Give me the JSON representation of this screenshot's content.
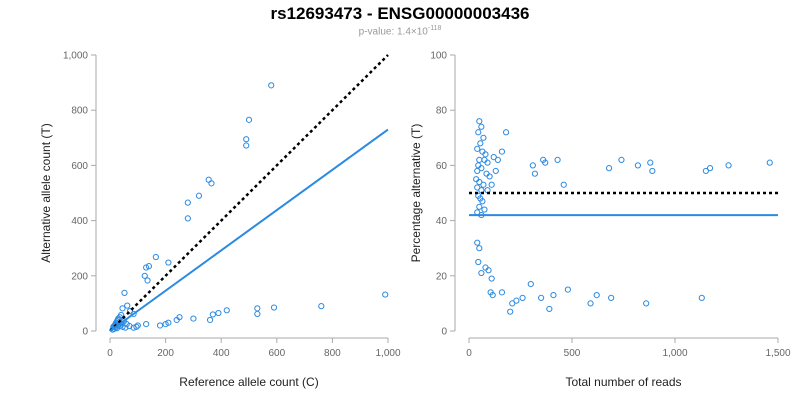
{
  "title": "rs12693473 - ENSG00000003436",
  "subtitle": {
    "prefix": "p-value: 1.4×10",
    "exponent": "-118"
  },
  "chart_data": [
    {
      "type": "scatter",
      "name": "allele-count-plot",
      "xlabel": "Reference allele count (C)",
      "ylabel": "Alternative allele count (T)",
      "xlim": [
        0,
        1000
      ],
      "ylim": [
        0,
        1000
      ],
      "xticks": [
        0,
        200,
        400,
        600,
        800,
        1000
      ],
      "xtick_labels": [
        "0",
        "200",
        "400",
        "600",
        "800",
        "1,000"
      ],
      "yticks": [
        0,
        200,
        400,
        600,
        800,
        1000
      ],
      "ytick_labels": [
        "0",
        "200",
        "400",
        "600",
        "800",
        "1,000"
      ],
      "reference_line": {
        "style": "dotted",
        "color": "#000000",
        "from": [
          0,
          0
        ],
        "to": [
          1000,
          1000
        ]
      },
      "fit_line": {
        "style": "solid",
        "color": "#2b8ae2",
        "from": [
          0,
          0
        ],
        "to": [
          1000,
          730
        ]
      },
      "marker_color": "#2b8ae2",
      "points": [
        [
          580,
          890
        ],
        [
          500,
          765
        ],
        [
          490,
          695
        ],
        [
          490,
          672
        ],
        [
          355,
          548
        ],
        [
          365,
          535
        ],
        [
          280,
          465
        ],
        [
          320,
          490
        ],
        [
          280,
          408
        ],
        [
          210,
          248
        ],
        [
          165,
          268
        ],
        [
          140,
          235
        ],
        [
          130,
          230
        ],
        [
          125,
          200
        ],
        [
          135,
          183
        ],
        [
          52,
          138
        ],
        [
          62,
          92
        ],
        [
          72,
          72
        ],
        [
          85,
          62
        ],
        [
          45,
          82
        ],
        [
          40,
          58
        ],
        [
          35,
          50
        ],
        [
          30,
          45
        ],
        [
          28,
          40
        ],
        [
          25,
          35
        ],
        [
          22,
          30
        ],
        [
          20,
          25
        ],
        [
          18,
          22
        ],
        [
          15,
          18
        ],
        [
          12,
          15
        ],
        [
          30,
          20
        ],
        [
          40,
          28
        ],
        [
          50,
          35
        ],
        [
          60,
          25
        ],
        [
          20,
          12
        ],
        [
          25,
          10
        ],
        [
          35,
          18
        ],
        [
          15,
          8
        ],
        [
          10,
          5
        ],
        [
          45,
          15
        ],
        [
          990,
          132
        ],
        [
          760,
          90
        ],
        [
          590,
          85
        ],
        [
          530,
          82
        ],
        [
          530,
          62
        ],
        [
          420,
          75
        ],
        [
          390,
          65
        ],
        [
          370,
          60
        ],
        [
          360,
          40
        ],
        [
          300,
          45
        ],
        [
          250,
          50
        ],
        [
          240,
          40
        ],
        [
          210,
          30
        ],
        [
          200,
          25
        ],
        [
          180,
          20
        ],
        [
          130,
          25
        ],
        [
          100,
          20
        ],
        [
          95,
          15
        ],
        [
          70,
          18
        ],
        [
          85,
          12
        ],
        [
          55,
          12
        ]
      ]
    },
    {
      "type": "scatter",
      "name": "percentage-plot",
      "xlabel": "Total number of reads",
      "ylabel": "Percentage alternative (T)",
      "xlim": [
        0,
        1500
      ],
      "ylim": [
        0,
        100
      ],
      "xticks": [
        0,
        500,
        1000,
        1500
      ],
      "xtick_labels": [
        "0",
        "500",
        "1,000",
        "1,500"
      ],
      "yticks": [
        0,
        20,
        40,
        60,
        80,
        100
      ],
      "ytick_labels": [
        "0",
        "20",
        "40",
        "60",
        "80",
        "100"
      ],
      "reference_line": {
        "style": "dotted",
        "color": "#000000",
        "y": 50
      },
      "fit_line": {
        "style": "solid",
        "color": "#2b8ae2",
        "y": 42
      },
      "marker_color": "#2b8ae2",
      "points": [
        [
          50,
          76
        ],
        [
          60,
          74
        ],
        [
          45,
          72
        ],
        [
          70,
          70
        ],
        [
          55,
          68
        ],
        [
          40,
          66
        ],
        [
          65,
          65
        ],
        [
          80,
          64
        ],
        [
          50,
          62
        ],
        [
          75,
          62
        ],
        [
          90,
          61
        ],
        [
          45,
          60
        ],
        [
          60,
          59
        ],
        [
          40,
          58
        ],
        [
          85,
          57
        ],
        [
          100,
          56
        ],
        [
          35,
          55
        ],
        [
          50,
          54
        ],
        [
          70,
          53
        ],
        [
          110,
          53
        ],
        [
          40,
          52
        ],
        [
          60,
          51
        ],
        [
          90,
          51
        ],
        [
          45,
          49
        ],
        [
          55,
          48
        ],
        [
          65,
          47
        ],
        [
          50,
          45
        ],
        [
          75,
          44
        ],
        [
          40,
          43
        ],
        [
          60,
          42
        ],
        [
          120,
          63
        ],
        [
          140,
          62
        ],
        [
          160,
          65
        ],
        [
          180,
          72
        ],
        [
          130,
          58
        ],
        [
          310,
          60
        ],
        [
          320,
          57
        ],
        [
          360,
          62
        ],
        [
          370,
          61
        ],
        [
          430,
          62
        ],
        [
          460,
          53
        ],
        [
          680,
          59
        ],
        [
          740,
          62
        ],
        [
          820,
          60
        ],
        [
          880,
          61
        ],
        [
          890,
          58
        ],
        [
          1150,
          58
        ],
        [
          1170,
          59
        ],
        [
          1260,
          60
        ],
        [
          1460,
          61
        ],
        [
          40,
          32
        ],
        [
          50,
          30
        ],
        [
          45,
          25
        ],
        [
          60,
          21
        ],
        [
          80,
          23
        ],
        [
          95,
          22
        ],
        [
          110,
          19
        ],
        [
          105,
          14
        ],
        [
          115,
          13
        ],
        [
          160,
          14
        ],
        [
          210,
          10
        ],
        [
          230,
          11
        ],
        [
          200,
          7
        ],
        [
          260,
          12
        ],
        [
          300,
          17
        ],
        [
          350,
          12
        ],
        [
          390,
          8
        ],
        [
          410,
          13
        ],
        [
          480,
          15
        ],
        [
          590,
          10
        ],
        [
          620,
          13
        ],
        [
          690,
          12
        ],
        [
          860,
          10
        ],
        [
          1130,
          12
        ]
      ]
    }
  ]
}
